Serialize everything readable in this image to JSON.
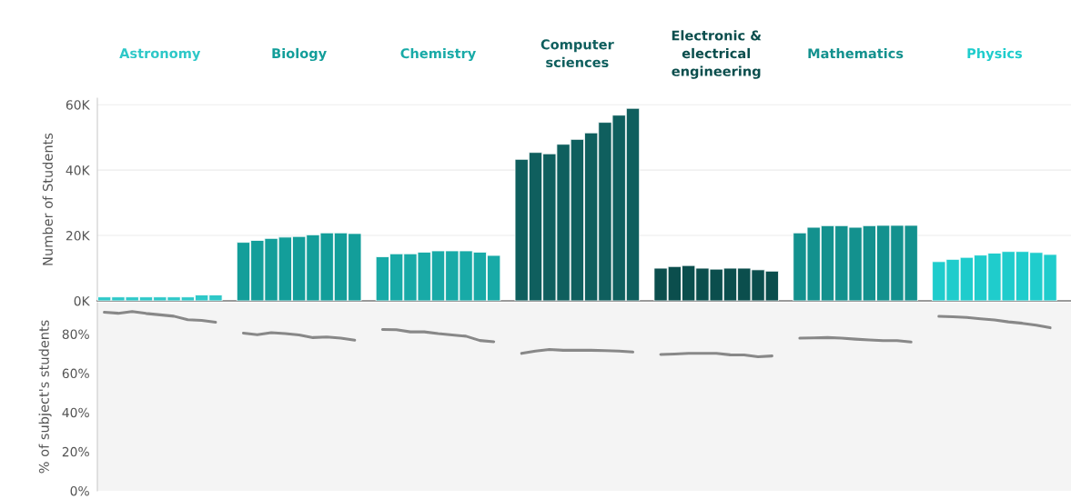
{
  "chart_data": [
    {
      "type": "bar",
      "ylabel": "Number of Students",
      "categories": [
        null,
        null,
        null,
        null,
        null,
        null,
        null,
        null,
        null,
        null,
        null,
        null,
        null,
        null,
        null,
        null,
        null,
        null,
        null,
        null,
        null,
        null,
        null,
        null,
        null,
        null,
        null,
        null,
        null,
        null,
        null,
        null,
        null,
        null,
        null,
        null,
        null,
        null,
        null,
        null,
        null,
        null,
        null,
        null,
        null,
        null,
        null,
        null,
        null,
        null,
        null,
        null,
        null,
        null,
        null,
        null,
        null,
        null,
        null,
        null,
        null,
        null,
        null,
        null,
        null,
        null,
        null,
        null,
        null,
        null
      ],
      "ylim": [
        0,
        62000
      ],
      "yticks": [
        {
          "value": 0,
          "label": "0K"
        },
        {
          "value": 20000,
          "label": "20K"
        },
        {
          "value": 40000,
          "label": "40K"
        },
        {
          "value": 60000,
          "label": "60K"
        }
      ],
      "grid": "y",
      "series": [
        {
          "name": "Astronomy",
          "color": "#2ec8c8",
          "values": [
            1200,
            1200,
            1200,
            1200,
            1200,
            1200,
            1200,
            1800,
            1800,
            null,
            null,
            null,
            null,
            null,
            null,
            null,
            null,
            null,
            null,
            null,
            null,
            null,
            null,
            null,
            null,
            null,
            null,
            null,
            null,
            null,
            null,
            null,
            null,
            null,
            null,
            null,
            null,
            null,
            null,
            null,
            null,
            null,
            null,
            null,
            null,
            null,
            null,
            null,
            null,
            null,
            null,
            null,
            null,
            null,
            null,
            null,
            null,
            null,
            null,
            null,
            null,
            null,
            null,
            null,
            null,
            null,
            null,
            null,
            null,
            null
          ]
        },
        {
          "name": "Biology",
          "color": "#139e9a",
          "values": [
            null,
            null,
            null,
            null,
            null,
            null,
            null,
            null,
            null,
            null,
            17900,
            18500,
            19100,
            19500,
            19700,
            20200,
            20800,
            20800,
            20600,
            null,
            null,
            null,
            null,
            null,
            null,
            null,
            null,
            null,
            null,
            null,
            null,
            null,
            null,
            null,
            null,
            null,
            null,
            null,
            null,
            null,
            null,
            null,
            null,
            null,
            null,
            null,
            null,
            null,
            null,
            null,
            null,
            null,
            null,
            null,
            null,
            null,
            null,
            null,
            null,
            null,
            null,
            null,
            null,
            null,
            null,
            null,
            null,
            null,
            null,
            null
          ]
        },
        {
          "name": "Chemistry",
          "color": "#18aaa7",
          "values": [
            null,
            null,
            null,
            null,
            null,
            null,
            null,
            null,
            null,
            null,
            null,
            null,
            null,
            null,
            null,
            null,
            null,
            null,
            null,
            null,
            13500,
            14400,
            14400,
            14900,
            15300,
            15300,
            15300,
            14900,
            13900,
            null,
            null,
            null,
            null,
            null,
            null,
            null,
            null,
            null,
            null,
            null,
            null,
            null,
            null,
            null,
            null,
            null,
            null,
            null,
            null,
            null,
            null,
            null,
            null,
            null,
            null,
            null,
            null,
            null,
            null,
            null,
            null,
            null,
            null,
            null,
            null,
            null,
            null,
            null,
            null,
            null
          ]
        },
        {
          "name": "Computer\nsciences",
          "color": "#0f5f5e",
          "values": [
            null,
            null,
            null,
            null,
            null,
            null,
            null,
            null,
            null,
            null,
            null,
            null,
            null,
            null,
            null,
            null,
            null,
            null,
            null,
            null,
            null,
            null,
            null,
            null,
            null,
            null,
            null,
            null,
            null,
            null,
            43300,
            45400,
            45000,
            47900,
            49400,
            51400,
            54600,
            56800,
            58900,
            null,
            null,
            null,
            null,
            null,
            null,
            null,
            null,
            null,
            null,
            null,
            null,
            null,
            null,
            null,
            null,
            null,
            null,
            null,
            null,
            null,
            null,
            null,
            null,
            null,
            null,
            null,
            null,
            null,
            null,
            null
          ]
        },
        {
          "name": "Electronic &\nelectrical\nengineering",
          "color": "#0b4e4d",
          "values": [
            null,
            null,
            null,
            null,
            null,
            null,
            null,
            null,
            null,
            null,
            null,
            null,
            null,
            null,
            null,
            null,
            null,
            null,
            null,
            null,
            null,
            null,
            null,
            null,
            null,
            null,
            null,
            null,
            null,
            null,
            null,
            null,
            null,
            null,
            null,
            null,
            null,
            null,
            null,
            null,
            10000,
            10500,
            10800,
            10000,
            9700,
            10000,
            10000,
            9500,
            9100,
            null,
            null,
            null,
            null,
            null,
            null,
            null,
            null,
            null,
            null,
            null,
            null,
            null,
            null,
            null,
            null,
            null,
            null,
            null,
            null,
            null
          ]
        },
        {
          "name": "Mathematics",
          "color": "#13918e",
          "values": [
            null,
            null,
            null,
            null,
            null,
            null,
            null,
            null,
            null,
            null,
            null,
            null,
            null,
            null,
            null,
            null,
            null,
            null,
            null,
            null,
            null,
            null,
            null,
            null,
            null,
            null,
            null,
            null,
            null,
            null,
            null,
            null,
            null,
            null,
            null,
            null,
            null,
            null,
            null,
            null,
            null,
            null,
            null,
            null,
            null,
            null,
            null,
            null,
            null,
            null,
            20800,
            22500,
            23000,
            23000,
            22500,
            23000,
            23100,
            23100,
            23100,
            null,
            null,
            null,
            null,
            null,
            null,
            null,
            null,
            null,
            null,
            null
          ]
        },
        {
          "name": "Physics",
          "color": "#1fcccc",
          "values": [
            null,
            null,
            null,
            null,
            null,
            null,
            null,
            null,
            null,
            null,
            null,
            null,
            null,
            null,
            null,
            null,
            null,
            null,
            null,
            null,
            null,
            null,
            null,
            null,
            null,
            null,
            null,
            null,
            null,
            null,
            null,
            null,
            null,
            null,
            null,
            null,
            null,
            null,
            null,
            null,
            null,
            null,
            null,
            null,
            null,
            null,
            null,
            null,
            null,
            null,
            null,
            null,
            null,
            null,
            null,
            null,
            null,
            null,
            null,
            null,
            12000,
            12700,
            13300,
            14000,
            14600,
            15100,
            15100,
            14800,
            14200,
            null
          ]
        }
      ]
    },
    {
      "type": "line",
      "ylabel": "% of subject's students",
      "categories": [
        null,
        null,
        null,
        null,
        null,
        null,
        null,
        null,
        null,
        null,
        null,
        null,
        null,
        null,
        null,
        null,
        null,
        null,
        null,
        null,
        null,
        null,
        null,
        null,
        null,
        null,
        null,
        null,
        null,
        null,
        null,
        null,
        null,
        null,
        null,
        null,
        null,
        null,
        null,
        null,
        null,
        null,
        null,
        null,
        null,
        null,
        null,
        null,
        null,
        null,
        null,
        null,
        null,
        null,
        null,
        null,
        null,
        null,
        null,
        null,
        null,
        null,
        null,
        null,
        null,
        null,
        null,
        null,
        null,
        null
      ],
      "ylim": [
        0,
        96
      ],
      "yticks": [
        {
          "value": 0,
          "label": "0%"
        },
        {
          "value": 20,
          "label": "20%"
        },
        {
          "value": 40,
          "label": "40%"
        },
        {
          "value": 60,
          "label": "60%"
        },
        {
          "value": 80,
          "label": "80%"
        }
      ],
      "series": [
        {
          "color": "#888888",
          "values": [
            91.1,
            90.6,
            91.5,
            90.5,
            89.8,
            89.1,
            87.3,
            87.0,
            86.0,
            null,
            null,
            null,
            null,
            null,
            null,
            null,
            null,
            null,
            null,
            null,
            null,
            null,
            null,
            null,
            null,
            null,
            null,
            null,
            null,
            null,
            null,
            null,
            null,
            null,
            null,
            null,
            null,
            null,
            null,
            null,
            null,
            null,
            null,
            null,
            null,
            null,
            null,
            null,
            null,
            null,
            null,
            null,
            null,
            null,
            null,
            null,
            null,
            null,
            null,
            null,
            null,
            null,
            null,
            null,
            null,
            null,
            null,
            null,
            null,
            null
          ]
        },
        {
          "color": "#888888",
          "values": [
            null,
            null,
            null,
            null,
            null,
            null,
            null,
            null,
            null,
            null,
            80.5,
            79.7,
            80.7,
            80.2,
            79.5,
            78.2,
            78.5,
            77.9,
            76.9,
            null,
            null,
            null,
            null,
            null,
            null,
            null,
            null,
            null,
            null,
            null,
            null,
            null,
            null,
            null,
            null,
            null,
            null,
            null,
            null,
            null,
            null,
            null,
            null,
            null,
            null,
            null,
            null,
            null,
            null,
            null,
            null,
            null,
            null,
            null,
            null,
            null,
            null,
            null,
            null,
            null,
            null,
            null,
            null,
            null,
            null,
            null,
            null,
            null,
            null,
            null
          ]
        },
        {
          "color": "#888888",
          "values": [
            null,
            null,
            null,
            null,
            null,
            null,
            null,
            null,
            null,
            null,
            null,
            null,
            null,
            null,
            null,
            null,
            null,
            null,
            null,
            null,
            82.3,
            82.2,
            81.1,
            81.1,
            80.2,
            79.5,
            78.9,
            76.7,
            76.1,
            null,
            null,
            null,
            null,
            null,
            null,
            null,
            null,
            null,
            null,
            null,
            null,
            null,
            null,
            null,
            null,
            null,
            null,
            null,
            null,
            null,
            null,
            null,
            null,
            null,
            null,
            null,
            null,
            null,
            null,
            null,
            null,
            null,
            null,
            null,
            null,
            null,
            null,
            null,
            null,
            null
          ]
        },
        {
          "color": "#888888",
          "values": [
            null,
            null,
            null,
            null,
            null,
            null,
            null,
            null,
            null,
            null,
            null,
            null,
            null,
            null,
            null,
            null,
            null,
            null,
            null,
            null,
            null,
            null,
            null,
            null,
            null,
            null,
            null,
            null,
            null,
            null,
            70.1,
            71.3,
            72.1,
            71.7,
            71.7,
            71.7,
            71.5,
            71.3,
            70.8,
            null,
            null,
            null,
            null,
            null,
            null,
            null,
            null,
            null,
            null,
            null,
            null,
            null,
            null,
            null,
            null,
            null,
            null,
            null,
            null,
            null,
            null,
            null,
            null,
            null,
            null,
            null,
            null,
            null,
            null,
            null
          ]
        },
        {
          "color": "#888888",
          "values": [
            null,
            null,
            null,
            null,
            null,
            null,
            null,
            null,
            null,
            null,
            null,
            null,
            null,
            null,
            null,
            null,
            null,
            null,
            null,
            null,
            null,
            null,
            null,
            null,
            null,
            null,
            null,
            null,
            null,
            null,
            null,
            null,
            null,
            null,
            null,
            null,
            null,
            null,
            null,
            null,
            69.6,
            69.8,
            70.1,
            70.1,
            70.1,
            69.4,
            69.3,
            68.4,
            68.8,
            null,
            null,
            null,
            null,
            null,
            null,
            null,
            null,
            null,
            null,
            null,
            null,
            null,
            null,
            null,
            null,
            null,
            null,
            null,
            null,
            null
          ]
        },
        {
          "color": "#888888",
          "values": [
            null,
            null,
            null,
            null,
            null,
            null,
            null,
            null,
            null,
            null,
            null,
            null,
            null,
            null,
            null,
            null,
            null,
            null,
            null,
            null,
            null,
            null,
            null,
            null,
            null,
            null,
            null,
            null,
            null,
            null,
            null,
            null,
            null,
            null,
            null,
            null,
            null,
            null,
            null,
            null,
            null,
            null,
            null,
            null,
            null,
            null,
            null,
            null,
            null,
            null,
            77.9,
            78.0,
            78.2,
            77.9,
            77.4,
            77.0,
            76.6,
            76.6,
            75.9,
            null,
            null,
            null,
            null,
            null,
            null,
            null,
            null,
            null,
            null,
            null
          ]
        },
        {
          "color": "#888888",
          "values": [
            null,
            null,
            null,
            null,
            null,
            null,
            null,
            null,
            null,
            null,
            null,
            null,
            null,
            null,
            null,
            null,
            null,
            null,
            null,
            null,
            null,
            null,
            null,
            null,
            null,
            null,
            null,
            null,
            null,
            null,
            null,
            null,
            null,
            null,
            null,
            null,
            null,
            null,
            null,
            null,
            null,
            null,
            null,
            null,
            null,
            null,
            null,
            null,
            null,
            null,
            null,
            null,
            null,
            null,
            null,
            null,
            null,
            null,
            null,
            null,
            89.0,
            88.8,
            88.5,
            87.8,
            87.2,
            86.2,
            85.5,
            84.5,
            83.2,
            null
          ]
        }
      ]
    }
  ]
}
